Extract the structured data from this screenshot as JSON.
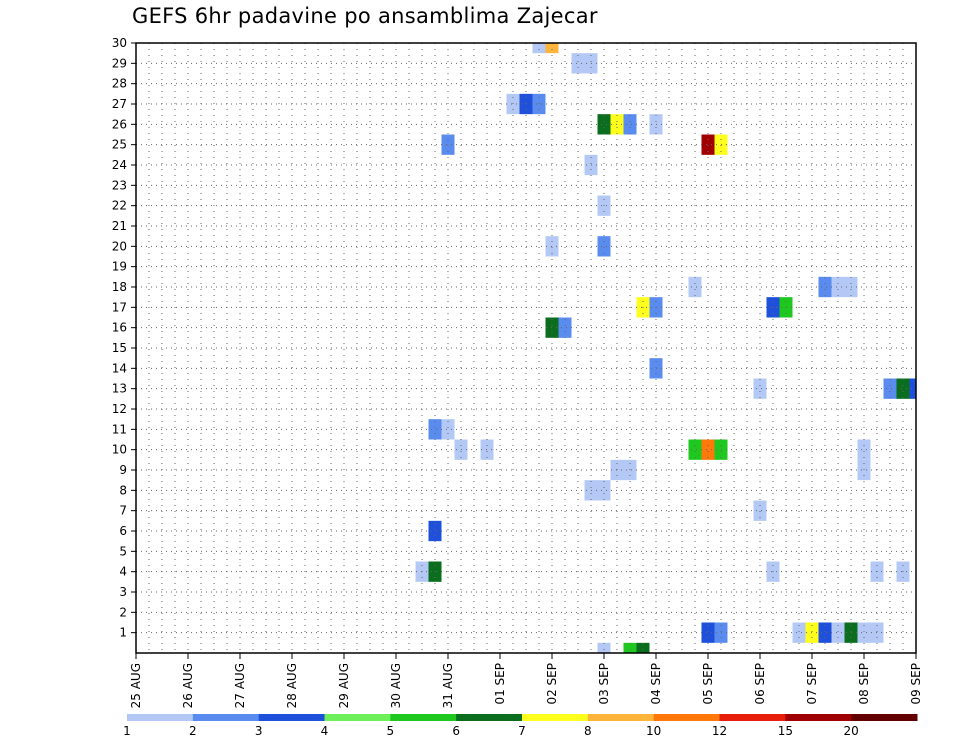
{
  "chart_data": {
    "type": "heatmap",
    "title": "GEFS 6hr padavine po ansamblima Zajecar",
    "xlabel": "",
    "ylabel": "",
    "x_ticks": [
      "25 AUG",
      "26 AUG",
      "27 AUG",
      "28 AUG",
      "29 AUG",
      "30 AUG",
      "31 AUG",
      "01 SEP",
      "02 SEP",
      "03 SEP",
      "04 SEP",
      "05 SEP",
      "06 SEP",
      "07 SEP",
      "08 SEP",
      "09 SEP"
    ],
    "xlim_days": [
      0,
      15
    ],
    "y_ticks": [
      1,
      2,
      3,
      4,
      5,
      6,
      7,
      8,
      9,
      10,
      11,
      12,
      13,
      14,
      15,
      16,
      17,
      18,
      19,
      20,
      21,
      22,
      23,
      24,
      25,
      26,
      27,
      28,
      29,
      30
    ],
    "ylim": [
      0,
      30
    ],
    "grid": true,
    "colorbar": {
      "levels": [
        1,
        2,
        3,
        4,
        5,
        6,
        7,
        8,
        10,
        12,
        15,
        20
      ],
      "colors": [
        "#b4c8f5",
        "#5a8cf0",
        "#1e50dc",
        "#6ef05a",
        "#1ec81e",
        "#0a6e1e",
        "#ffff1e",
        "#ffb43c",
        "#ff780a",
        "#e61e0a",
        "#a00000",
        "#640000"
      ]
    },
    "cells": [
      {
        "member": 30,
        "day": 7.75,
        "level": 1
      },
      {
        "member": 30,
        "day": 8.0,
        "level": 8
      },
      {
        "member": 29,
        "day": 8.5,
        "level": 1
      },
      {
        "member": 29,
        "day": 8.75,
        "level": 1
      },
      {
        "member": 27,
        "day": 7.25,
        "level": 1
      },
      {
        "member": 27,
        "day": 7.5,
        "level": 3
      },
      {
        "member": 27,
        "day": 7.75,
        "level": 2
      },
      {
        "member": 26,
        "day": 9.0,
        "level": 6
      },
      {
        "member": 26,
        "day": 9.25,
        "level": 7
      },
      {
        "member": 26,
        "day": 9.5,
        "level": 2
      },
      {
        "member": 26,
        "day": 10.0,
        "level": 1
      },
      {
        "member": 25,
        "day": 6.0,
        "level": 2
      },
      {
        "member": 25,
        "day": 11.0,
        "level": 15
      },
      {
        "member": 25,
        "day": 11.25,
        "level": 7
      },
      {
        "member": 24,
        "day": 8.75,
        "level": 1
      },
      {
        "member": 22,
        "day": 9.0,
        "level": 1
      },
      {
        "member": 20,
        "day": 8.0,
        "level": 1
      },
      {
        "member": 20,
        "day": 9.0,
        "level": 2
      },
      {
        "member": 18,
        "day": 10.75,
        "level": 1
      },
      {
        "member": 18,
        "day": 13.25,
        "level": 2
      },
      {
        "member": 18,
        "day": 13.5,
        "level": 1
      },
      {
        "member": 18,
        "day": 13.75,
        "level": 1
      },
      {
        "member": 17,
        "day": 9.75,
        "level": 7
      },
      {
        "member": 17,
        "day": 10.0,
        "level": 2
      },
      {
        "member": 17,
        "day": 12.25,
        "level": 3
      },
      {
        "member": 17,
        "day": 12.5,
        "level": 5
      },
      {
        "member": 16,
        "day": 8.0,
        "level": 6
      },
      {
        "member": 16,
        "day": 8.25,
        "level": 2
      },
      {
        "member": 14,
        "day": 10.0,
        "level": 2
      },
      {
        "member": 13,
        "day": 12.0,
        "level": 1
      },
      {
        "member": 13,
        "day": 14.5,
        "level": 2
      },
      {
        "member": 13,
        "day": 14.75,
        "level": 6
      },
      {
        "member": 13,
        "day": 15.0,
        "level": 3
      },
      {
        "member": 11,
        "day": 5.75,
        "level": 2
      },
      {
        "member": 11,
        "day": 6.0,
        "level": 1
      },
      {
        "member": 10,
        "day": 6.25,
        "level": 1
      },
      {
        "member": 10,
        "day": 6.75,
        "level": 1
      },
      {
        "member": 10,
        "day": 10.75,
        "level": 5
      },
      {
        "member": 10,
        "day": 11.0,
        "level": 10
      },
      {
        "member": 10,
        "day": 11.25,
        "level": 5
      },
      {
        "member": 10,
        "day": 14.0,
        "level": 1
      },
      {
        "member": 9,
        "day": 9.25,
        "level": 1
      },
      {
        "member": 9,
        "day": 9.5,
        "level": 1
      },
      {
        "member": 9,
        "day": 14.0,
        "level": 1
      },
      {
        "member": 8,
        "day": 8.75,
        "level": 1
      },
      {
        "member": 8,
        "day": 9.0,
        "level": 1
      },
      {
        "member": 7,
        "day": 12.0,
        "level": 1
      },
      {
        "member": 6,
        "day": 5.75,
        "level": 3
      },
      {
        "member": 4,
        "day": 5.5,
        "level": 1
      },
      {
        "member": 4,
        "day": 5.75,
        "level": 6
      },
      {
        "member": 4,
        "day": 12.25,
        "level": 1
      },
      {
        "member": 4,
        "day": 14.25,
        "level": 1
      },
      {
        "member": 4,
        "day": 14.75,
        "level": 1
      },
      {
        "member": 1,
        "day": 11.0,
        "level": 3
      },
      {
        "member": 1,
        "day": 11.25,
        "level": 2
      },
      {
        "member": 1,
        "day": 12.75,
        "level": 1
      },
      {
        "member": 1,
        "day": 13.0,
        "level": 7
      },
      {
        "member": 1,
        "day": 13.25,
        "level": 3
      },
      {
        "member": 1,
        "day": 13.5,
        "level": 1
      },
      {
        "member": 1,
        "day": 13.75,
        "level": 6
      },
      {
        "member": 1,
        "day": 14.0,
        "level": 1
      },
      {
        "member": 1,
        "day": 14.25,
        "level": 1
      },
      {
        "member": 0,
        "day": 9.0,
        "level": 1
      },
      {
        "member": 0,
        "day": 9.5,
        "level": 5
      },
      {
        "member": 0,
        "day": 9.75,
        "level": 6
      }
    ]
  }
}
